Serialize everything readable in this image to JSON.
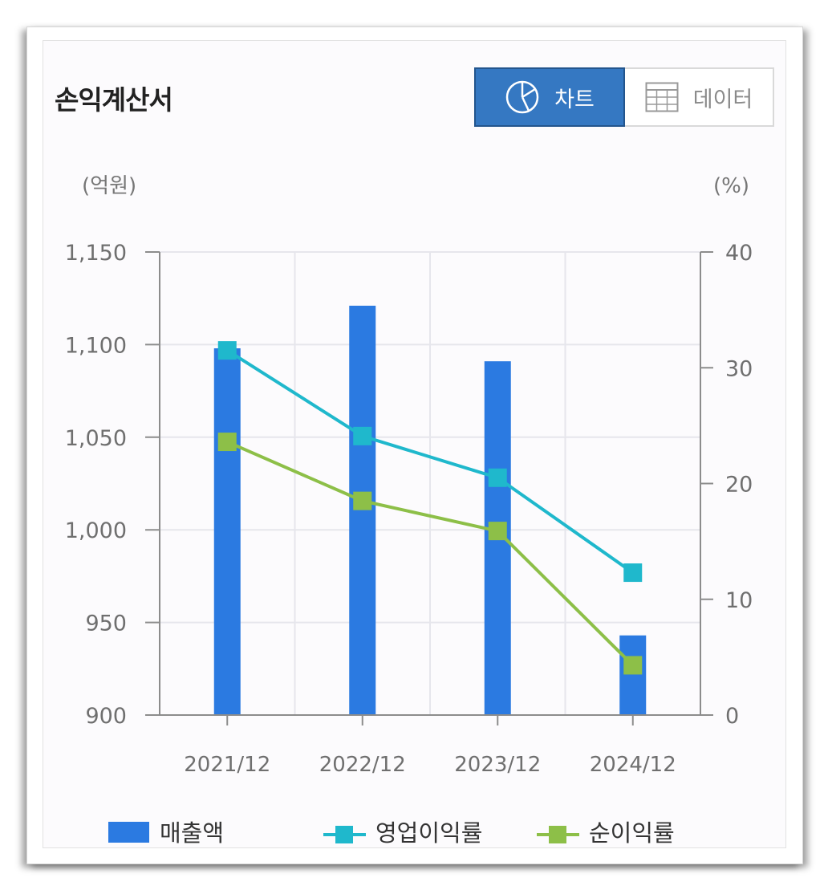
{
  "header": {
    "title": "손익계산서",
    "toggle": {
      "chart_label": "차트",
      "chart_icon": "pie-chart-icon",
      "data_label": "데이터",
      "data_icon": "table-grid-icon",
      "active": "chart"
    }
  },
  "colors": {
    "bar": "#2b7ae1",
    "operating_margin": "#1fb8cc",
    "net_margin": "#8dbf48",
    "grid": "#e6e6ec",
    "axis": "#8c8c8c",
    "toggle_active": "#3578c2"
  },
  "chart_data": {
    "type": "bar+line",
    "categories": [
      "2021/12",
      "2022/12",
      "2023/12",
      "2024/12"
    ],
    "left_axis": {
      "unit": "(억원)",
      "range": [
        900,
        1150
      ],
      "ticks": [
        900,
        950,
        1000,
        1050,
        1100,
        1150
      ],
      "tick_labels": [
        "900",
        "950",
        "1,000",
        "1,050",
        "1,100",
        "1,150"
      ]
    },
    "right_axis": {
      "unit": "(%)",
      "range": [
        0,
        40
      ],
      "ticks": [
        0,
        10,
        20,
        30,
        40
      ],
      "tick_labels": [
        "0",
        "10",
        "20",
        "30",
        "40"
      ]
    },
    "series": [
      {
        "name": "매출액",
        "type": "bar",
        "axis": "left",
        "values": [
          1098,
          1121,
          1091,
          943
        ]
      },
      {
        "name": "영업이익률",
        "type": "line",
        "axis": "right",
        "values": [
          31.5,
          24.1,
          20.5,
          12.3
        ]
      },
      {
        "name": "순이익률",
        "type": "line",
        "axis": "right",
        "values": [
          23.6,
          18.5,
          15.9,
          4.3
        ]
      }
    ],
    "grid": true,
    "legend": "bottom"
  }
}
